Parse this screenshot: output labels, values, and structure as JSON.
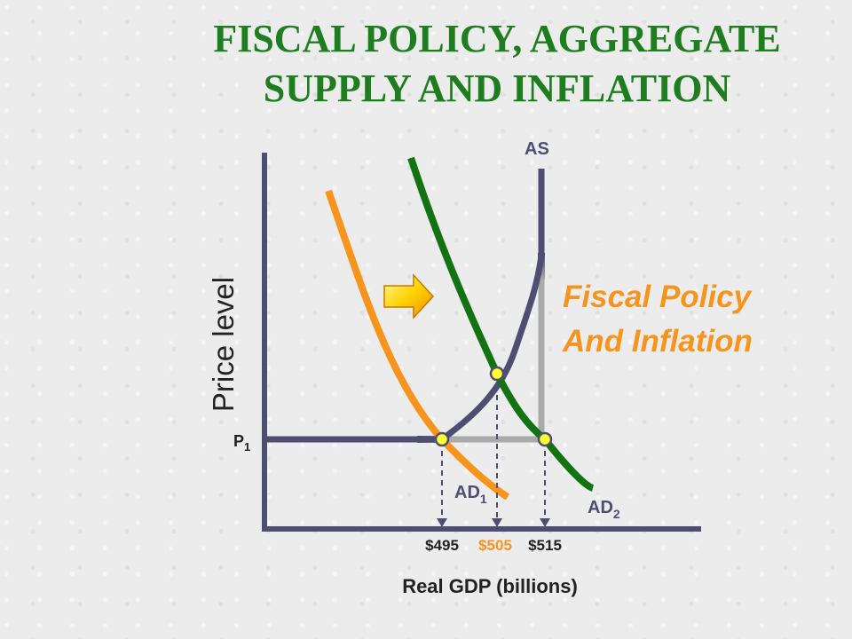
{
  "title": {
    "line1": "FISCAL POLICY, AGGREGATE",
    "line2": "SUPPLY AND INFLATION"
  },
  "callout": {
    "line1": "Fiscal Policy",
    "line2": "And Inflation"
  },
  "colors": {
    "title": "#1e7d1e",
    "as_curve": "#4e4e72",
    "ad1_curve": "#f7941d",
    "ad2_curve": "#137313",
    "highlight": "#f7941d",
    "point_fill": "#ffff33"
  },
  "chart_data": {
    "type": "line",
    "ylabel": "Price level",
    "xlabel": "Real GDP (billions)",
    "y_tick_label": "P",
    "y_tick_label_sub": "1",
    "x_ticks": [
      {
        "label": "$495",
        "value": 495,
        "highlight": false
      },
      {
        "label": "$505",
        "value": 505,
        "highlight": true
      },
      {
        "label": "$515",
        "value": 515,
        "highlight": false
      }
    ],
    "series": [
      {
        "name": "AS",
        "sub": "",
        "kind": "aggregate-supply"
      },
      {
        "name": "AD",
        "sub": "1",
        "kind": "aggregate-demand"
      },
      {
        "name": "AD",
        "sub": "2",
        "kind": "aggregate-demand"
      }
    ],
    "arrow_icon": "right-arrow-icon"
  }
}
